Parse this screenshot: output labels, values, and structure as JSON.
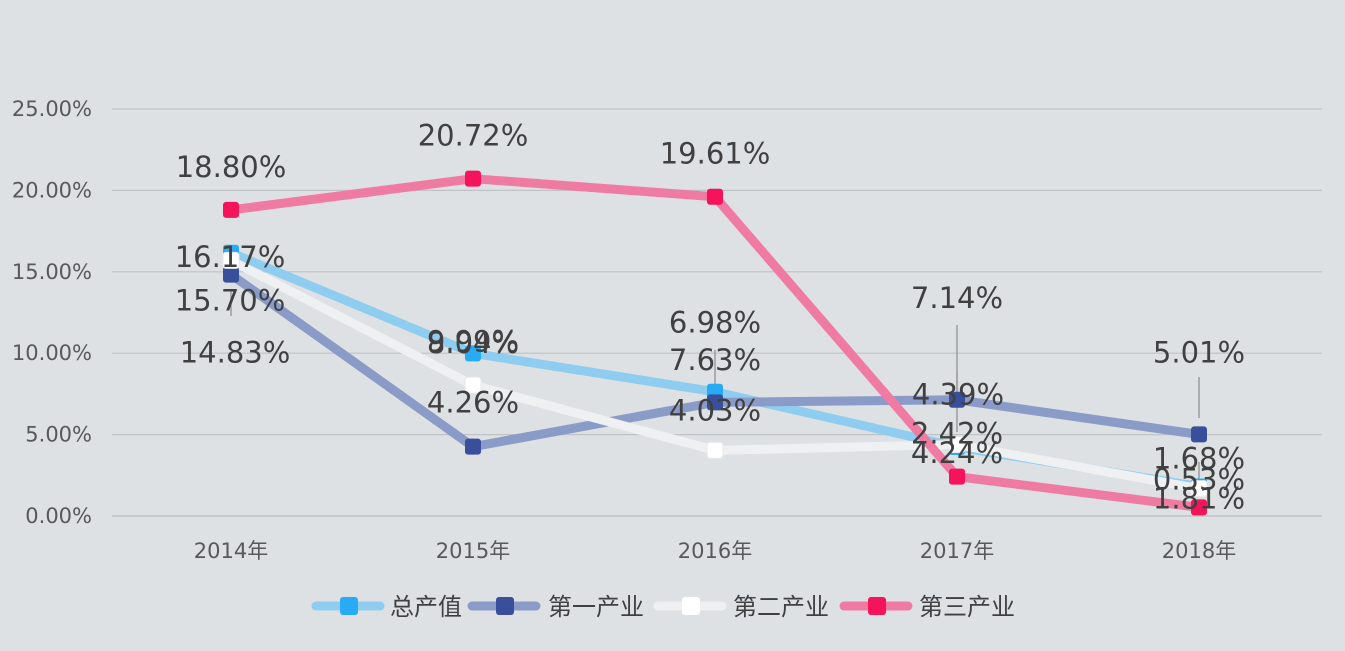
{
  "chart_data": {
    "type": "line",
    "title": "",
    "xlabel": "",
    "ylabel": "",
    "categories": [
      "2014年",
      "2015年",
      "2016年",
      "2017年",
      "2018年"
    ],
    "ylim": [
      0,
      25
    ],
    "yticks": [
      "0.00%",
      "5.00%",
      "10.00%",
      "15.00%",
      "20.00%",
      "25.00%"
    ],
    "grid": true,
    "legend": "bottom",
    "series": [
      {
        "name": "总产值",
        "color": "#8ecdf0",
        "marker_color": "#29aaf4",
        "values": [
          16.17,
          9.99,
          7.63,
          4.24,
          1.81
        ],
        "labels": [
          "16.17%",
          "9.99%",
          "7.63%",
          "4.24%",
          "1.81%"
        ]
      },
      {
        "name": "第一产业",
        "color": "#8a9bc8",
        "marker_color": "#3a4f9c",
        "values": [
          14.83,
          4.26,
          6.98,
          7.14,
          5.01
        ],
        "labels": [
          "14.83%",
          "4.26%",
          "6.98%",
          "7.14%",
          "5.01%"
        ]
      },
      {
        "name": "第二产业",
        "color": "#eef0f1",
        "marker_color": "#ffffff",
        "values": [
          15.7,
          8.04,
          4.03,
          4.39,
          1.68
        ],
        "labels": [
          "15.70%",
          "8.04%",
          "4.03%",
          "4.39%",
          "1.68%"
        ]
      },
      {
        "name": "第三产业",
        "color": "#ef7ba3",
        "marker_color": "#f5135c",
        "values": [
          18.8,
          20.72,
          19.61,
          2.42,
          0.53
        ],
        "labels": [
          "18.80%",
          "20.72%",
          "19.61%",
          "2.42%",
          "0.53%"
        ]
      }
    ]
  }
}
